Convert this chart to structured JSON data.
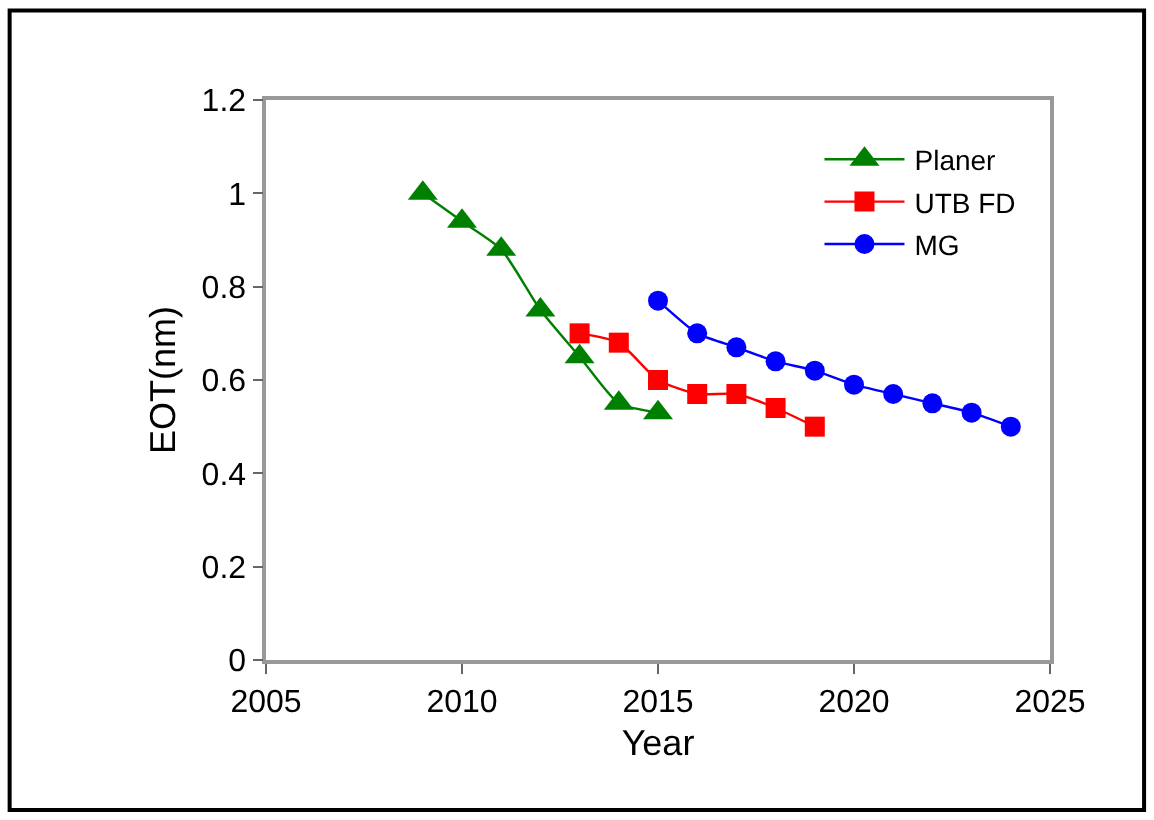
{
  "chart_data": {
    "type": "line",
    "xlabel": "Year",
    "ylabel": "EOT(nm)",
    "xlim": [
      2005,
      2025
    ],
    "xticks": [
      2005,
      2010,
      2015,
      2020,
      2025
    ],
    "ylim": [
      0,
      1.2
    ],
    "yticks": [
      0,
      0.2,
      0.4,
      0.6,
      0.8,
      1,
      1.2
    ],
    "legend": "top right",
    "series": [
      {
        "name": "Planer",
        "color": "#008000",
        "marker": "triangle",
        "x": [
          2009,
          2010,
          2011,
          2012,
          2013,
          2014,
          2015
        ],
        "values": [
          1.0,
          0.94,
          0.88,
          0.75,
          0.65,
          0.55,
          0.53
        ]
      },
      {
        "name": "UTB FD",
        "color": "#ff0000",
        "marker": "square",
        "x": [
          2013,
          2014,
          2015,
          2016,
          2017,
          2018,
          2019
        ],
        "values": [
          0.7,
          0.68,
          0.6,
          0.57,
          0.57,
          0.54,
          0.5
        ]
      },
      {
        "name": "MG",
        "color": "#0000ff",
        "marker": "circle",
        "x": [
          2015,
          2016,
          2017,
          2018,
          2019,
          2020,
          2021,
          2022,
          2023,
          2024
        ],
        "values": [
          0.77,
          0.7,
          0.67,
          0.64,
          0.62,
          0.59,
          0.57,
          0.55,
          0.53,
          0.5
        ]
      }
    ]
  }
}
